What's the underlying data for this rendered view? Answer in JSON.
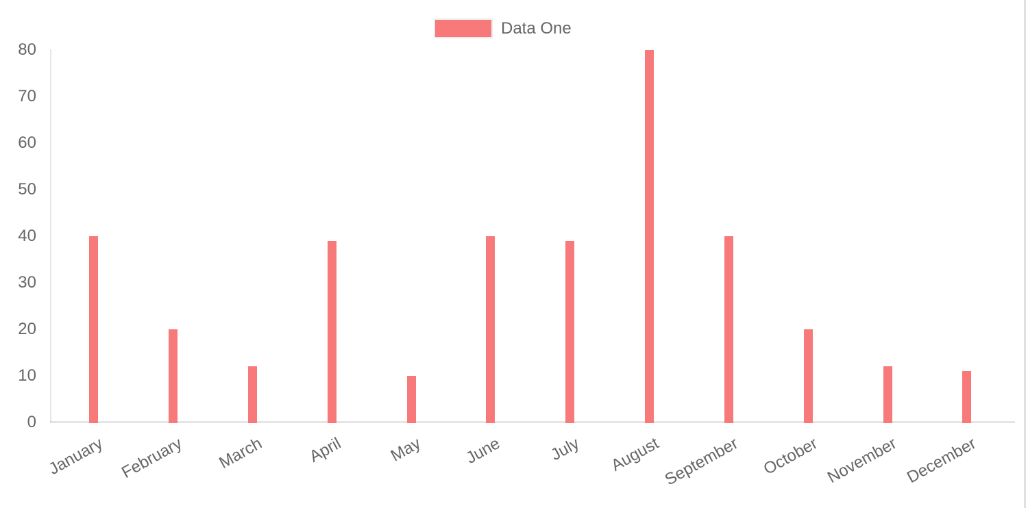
{
  "chart_data": {
    "type": "bar",
    "title": "",
    "categories": [
      "January",
      "February",
      "March",
      "April",
      "May",
      "June",
      "July",
      "August",
      "September",
      "October",
      "November",
      "December"
    ],
    "series": [
      {
        "name": "Data One",
        "color": "#f87979",
        "values": [
          40,
          20,
          12,
          39,
          10,
          40,
          39,
          80,
          40,
          20,
          12,
          11
        ]
      }
    ],
    "xlabel": "",
    "ylabel": "",
    "y_axis": {
      "min": 0,
      "max": 80,
      "ticks": [
        0,
        10,
        20,
        30,
        40,
        50,
        60,
        70,
        80
      ]
    },
    "grid": "off",
    "legend_position": "top"
  },
  "legend": {
    "label": "Data One"
  },
  "colors": {
    "bar_fill": "#f87979",
    "axis_line": "rgba(0,0,0,0.1)",
    "tick_text": "#666666",
    "page_right_border": "#e0e0e0"
  }
}
